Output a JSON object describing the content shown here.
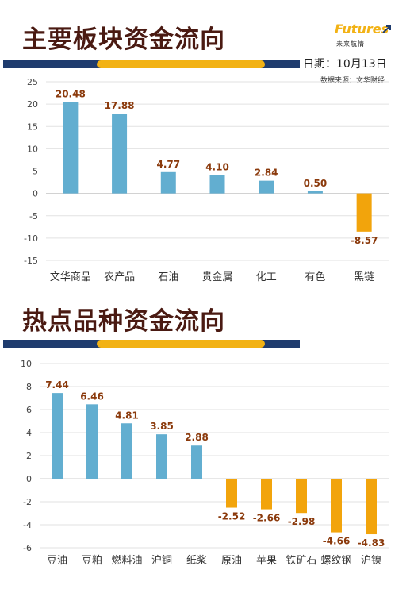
{
  "logo": {
    "brand": "Futures",
    "sub": "未来航情"
  },
  "section1": {
    "title": "主要板块资金流向",
    "date_label": "日期：",
    "date_value": "10月13日",
    "source_label": "数据来源：",
    "source_value": "文华财经"
  },
  "section2": {
    "title": "热点品种资金流向"
  },
  "colors": {
    "positive": "#62aed0",
    "negative": "#f2a40c",
    "label": "#8b3a0c",
    "grid": "#e2e2e2",
    "axis_text": "#444444"
  },
  "chart_data": [
    {
      "type": "bar",
      "title": "主要板块资金流向",
      "categories": [
        "文华商品",
        "农产品",
        "石油",
        "贵金属",
        "化工",
        "有色",
        "黑链"
      ],
      "values": [
        20.48,
        17.88,
        4.77,
        4.1,
        2.84,
        0.5,
        -8.57
      ],
      "value_labels": [
        "20.48",
        "17.88",
        "4.77",
        "4.10",
        "2.84",
        "0.50",
        "-8.57"
      ],
      "yticks": [
        "25",
        "20",
        "15",
        "10",
        "5",
        "0",
        "-5",
        "-10",
        "-15"
      ],
      "ylim": [
        -15,
        25
      ],
      "grid": true,
      "legend": "none"
    },
    {
      "type": "bar",
      "title": "热点品种资金流向",
      "categories": [
        "豆油",
        "豆粕",
        "燃料油",
        "沪铜",
        "纸浆",
        "原油",
        "苹果",
        "铁矿石",
        "螺纹钢",
        "沪镍"
      ],
      "values": [
        7.44,
        6.46,
        4.81,
        3.85,
        2.88,
        -2.52,
        -2.66,
        -2.98,
        -4.66,
        -4.83
      ],
      "value_labels": [
        "7.44",
        "6.46",
        "4.81",
        "3.85",
        "2.88",
        "-2.52",
        "-2.66",
        "-2.98",
        "-4.66",
        "-4.83"
      ],
      "yticks": [
        "10",
        "8",
        "6",
        "4",
        "2",
        "0",
        "-2",
        "-4",
        "-6"
      ],
      "ylim": [
        -6,
        10
      ],
      "grid": true,
      "legend": "none"
    }
  ]
}
